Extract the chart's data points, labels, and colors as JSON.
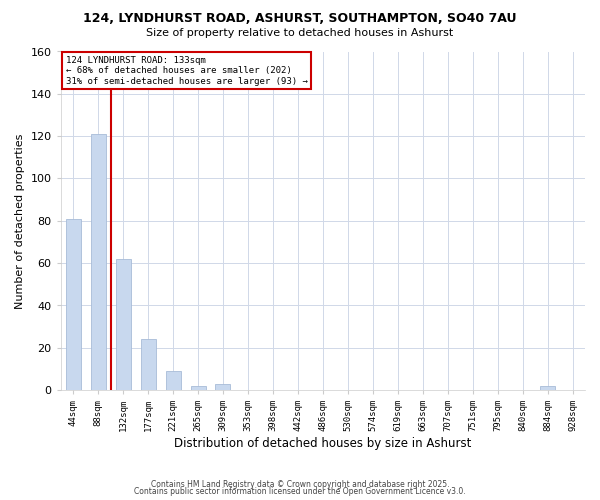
{
  "title_line1": "124, LYNDHURST ROAD, ASHURST, SOUTHAMPTON, SO40 7AU",
  "title_line2": "Size of property relative to detached houses in Ashurst",
  "xlabel": "Distribution of detached houses by size in Ashurst",
  "ylabel": "Number of detached properties",
  "bar_color": "#c8d8ee",
  "bar_edge_color": "#a8bcd8",
  "vline_color": "#cc0000",
  "vline_x_idx": 2,
  "annotation_text": "124 LYNDHURST ROAD: 133sqm\n← 68% of detached houses are smaller (202)\n31% of semi-detached houses are larger (93) →",
  "annotation_box_color": "#cc0000",
  "annotation_text_color": "#000000",
  "categories": [
    "44sqm",
    "88sqm",
    "132sqm",
    "177sqm",
    "221sqm",
    "265sqm",
    "309sqm",
    "353sqm",
    "398sqm",
    "442sqm",
    "486sqm",
    "530sqm",
    "574sqm",
    "619sqm",
    "663sqm",
    "707sqm",
    "751sqm",
    "795sqm",
    "840sqm",
    "884sqm",
    "928sqm"
  ],
  "values": [
    81,
    121,
    62,
    24,
    9,
    2,
    3,
    0,
    0,
    0,
    0,
    0,
    0,
    0,
    0,
    0,
    0,
    0,
    0,
    2,
    0
  ],
  "ylim": [
    0,
    160
  ],
  "yticks": [
    0,
    20,
    40,
    60,
    80,
    100,
    120,
    140,
    160
  ],
  "background_color": "#ffffff",
  "plot_background": "#ffffff",
  "grid_color": "#d0d8e8",
  "footer_line1": "Contains HM Land Registry data © Crown copyright and database right 2025.",
  "footer_line2": "Contains public sector information licensed under the Open Government Licence v3.0.",
  "bar_width": 0.6
}
